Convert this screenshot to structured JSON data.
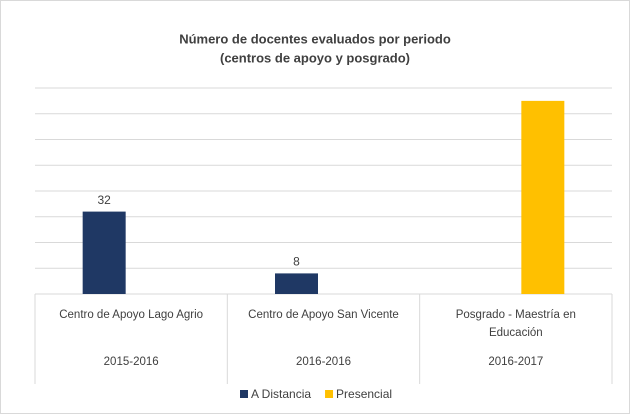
{
  "chart_data": {
    "type": "bar",
    "title": "Número de docentes evaluados por periodo",
    "subtitle": "(centros de apoyo y posgrado)",
    "categories": [
      "Centro de Apoyo Lago Agrio",
      "Centro de Apoyo San Vicente",
      "Posgrado - Maestría en Educación"
    ],
    "periods": [
      "2015-2016",
      "2016-2016",
      "2016-2017"
    ],
    "series": [
      {
        "name": "A Distancia",
        "color": "#1f3864",
        "values": [
          32,
          8,
          null
        ]
      },
      {
        "name": "Presencial",
        "color": "#ffc000",
        "values": [
          null,
          null,
          75
        ]
      }
    ],
    "data_labels": [
      true,
      false
    ],
    "ylim": [
      0,
      80
    ],
    "yticks": [
      0,
      10,
      20,
      30,
      40,
      50,
      60,
      70,
      80
    ],
    "grid": true,
    "legend": "bottom"
  }
}
